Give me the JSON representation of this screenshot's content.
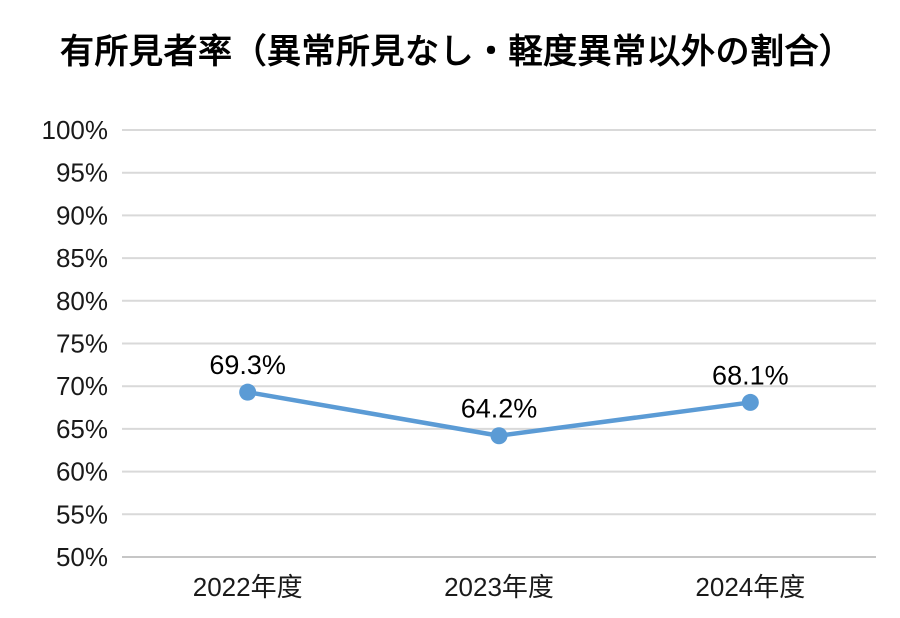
{
  "chart_data": {
    "type": "line",
    "title": "有所見者率（異常所見なし・軽度異常以外の割合）",
    "categories": [
      "2022年度",
      "2023年度",
      "2024年度"
    ],
    "values": [
      69.3,
      64.2,
      68.1
    ],
    "data_labels": [
      "69.3%",
      "64.2%",
      "68.1%"
    ],
    "ylim": [
      50,
      100
    ],
    "ytick_step": 5,
    "ytick_labels": [
      "100%",
      "95%",
      "90%",
      "85%",
      "80%",
      "75%",
      "70%",
      "65%",
      "60%",
      "55%",
      "50%"
    ],
    "grid": "horizontal",
    "legend": "none",
    "colors": {
      "line": "#5B9BD5",
      "marker": "#5B9BD5",
      "gridline": "#D9D9D9",
      "axis_line": "#C6C6C6",
      "text": "#1a1a1a",
      "title_text": "#000000",
      "background": "#ffffff"
    }
  }
}
